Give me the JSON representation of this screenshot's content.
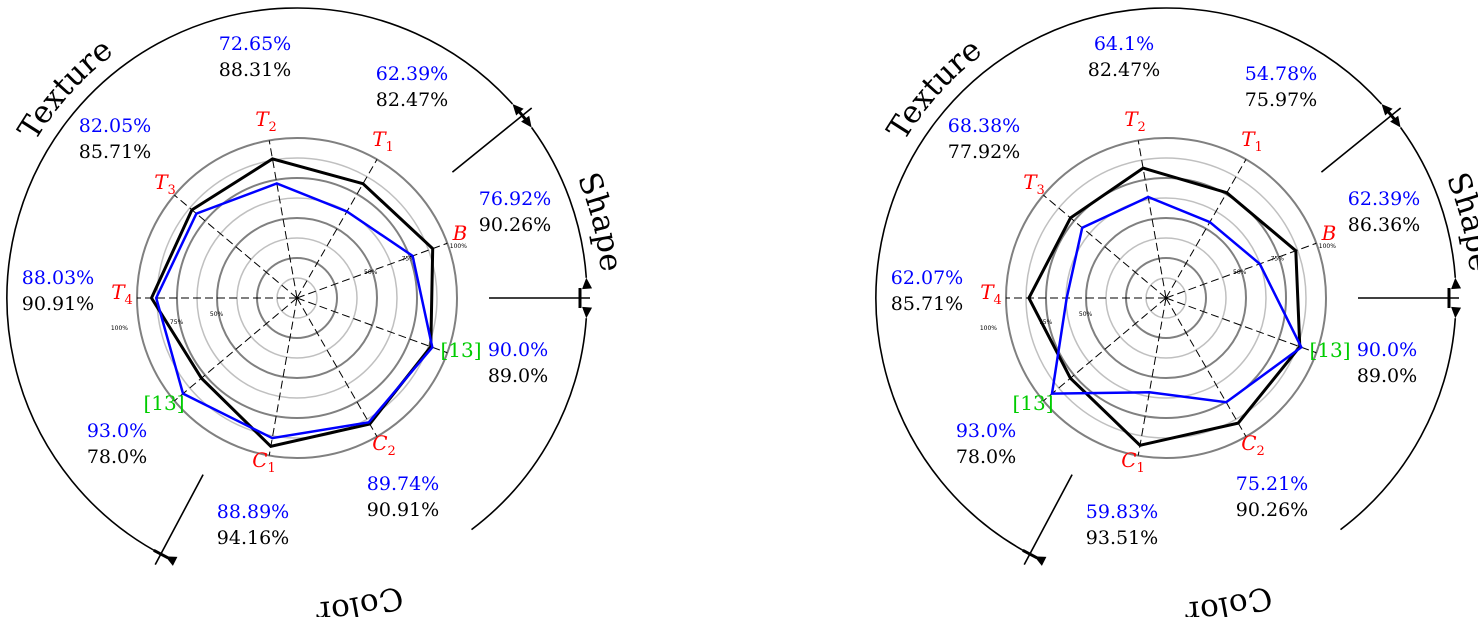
{
  "colors": {
    "series_black": "#000000",
    "series_blue": "#0000ff",
    "axis_label_red": "#ff0000",
    "axis_label_green": "#00cc00",
    "grid_dark": "#808080",
    "grid_light": "#c0c0c0"
  },
  "chart_data": [
    {
      "type": "radar",
      "axes": [
        "B",
        "[13]",
        "C2",
        "C1",
        "[13]",
        "T4",
        "T3",
        "T2",
        "T1"
      ],
      "axis_labels": [
        {
          "text": "B",
          "sub": ""
        },
        {
          "text": "[13]",
          "sub": ""
        },
        {
          "text": "C",
          "sub": "2"
        },
        {
          "text": "C",
          "sub": "1"
        },
        {
          "text": "[13]",
          "sub": ""
        },
        {
          "text": "T",
          "sub": "4"
        },
        {
          "text": "T",
          "sub": "3"
        },
        {
          "text": "T",
          "sub": "2"
        },
        {
          "text": "T",
          "sub": "1"
        }
      ],
      "radial_range": [
        0,
        100
      ],
      "tick_labels": [
        "50%",
        "75%",
        "100%"
      ],
      "series": [
        {
          "values": [
            90.26,
            89.0,
            90.91,
            94.16,
            78.0,
            90.91,
            85.71,
            88.31,
            82.47
          ],
          "labels": [
            "90.26%",
            "89.0%",
            "90.91%",
            "94.16%",
            "78.0%",
            "90.91%",
            "85.71%",
            "88.31%",
            "82.47%"
          ]
        },
        {
          "values": [
            76.92,
            90.0,
            89.74,
            88.89,
            93.0,
            88.03,
            82.05,
            72.65,
            62.39
          ],
          "labels": [
            "76.92%",
            "90.0%",
            "89.74%",
            "88.89%",
            "93.0%",
            "88.03%",
            "82.05%",
            "72.65%",
            "62.39%"
          ]
        }
      ],
      "groups": [
        "Texture",
        "Shape",
        "Color"
      ]
    },
    {
      "type": "radar",
      "axes": [
        "B",
        "[13]",
        "C2",
        "C1",
        "[13]",
        "T4",
        "T3",
        "T2",
        "T1"
      ],
      "axis_labels": [
        {
          "text": "B",
          "sub": ""
        },
        {
          "text": "[13]",
          "sub": ""
        },
        {
          "text": "C",
          "sub": "2"
        },
        {
          "text": "C",
          "sub": "1"
        },
        {
          "text": "[13]",
          "sub": ""
        },
        {
          "text": "T",
          "sub": "4"
        },
        {
          "text": "T",
          "sub": "3"
        },
        {
          "text": "T",
          "sub": "2"
        },
        {
          "text": "T",
          "sub": "1"
        }
      ],
      "radial_range": [
        0,
        100
      ],
      "tick_labels": [
        "50%",
        "75%",
        "100%"
      ],
      "series": [
        {
          "values": [
            86.36,
            89.0,
            90.26,
            93.51,
            78.0,
            85.71,
            77.92,
            82.47,
            75.97
          ],
          "labels": [
            "86.36%",
            "89.0%",
            "90.26%",
            "93.51%",
            "78.0%",
            "85.71%",
            "77.92%",
            "82.47%",
            "75.97%"
          ]
        },
        {
          "values": [
            62.39,
            90.0,
            75.21,
            59.83,
            93.0,
            62.07,
            68.38,
            64.1,
            54.78
          ],
          "labels": [
            "62.39%",
            "90.0%",
            "75.21%",
            "59.83%",
            "93.0%",
            "62.07%",
            "68.38%",
            "64.1%",
            "54.78%"
          ]
        }
      ],
      "groups": [
        "Texture",
        "Shape",
        "Color"
      ]
    }
  ]
}
